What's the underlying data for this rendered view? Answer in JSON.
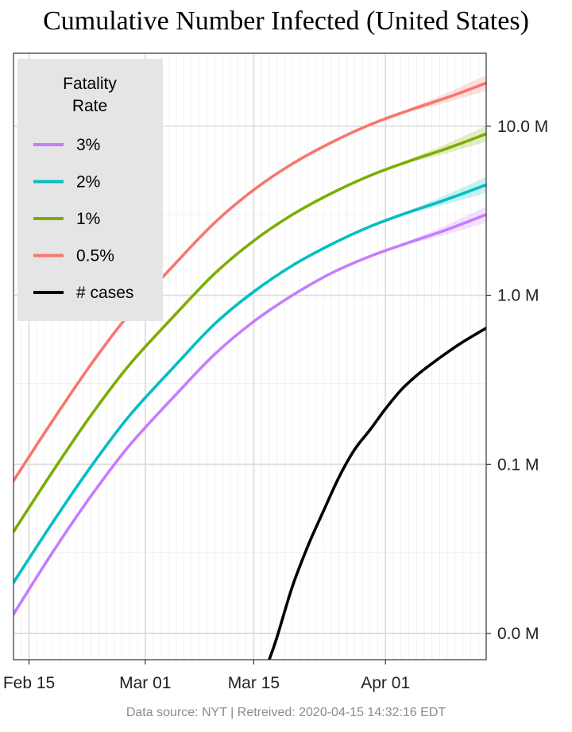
{
  "chart_data": {
    "type": "line",
    "title": "Cumulative Number Infected (United States)",
    "caption": "Data source: NYT  |  Retreived: 2020-04-15 14:32:16 EDT",
    "x_axis": {
      "type": "date",
      "range": [
        "2020-02-13",
        "2020-04-14"
      ],
      "tick_labels": [
        "Feb 15",
        "Mar 01",
        "Mar 15",
        "Apr 01"
      ],
      "tick_dates": [
        "2020-02-15",
        "2020-03-01",
        "2020-03-15",
        "2020-04-01"
      ]
    },
    "y_axis": {
      "scale": "log",
      "position": "right",
      "range": [
        7000,
        27000000
      ],
      "tick_labels": [
        "0.0 M",
        "0.1 M",
        "1.0 M",
        "10.0 M"
      ],
      "tick_values": [
        10000,
        100000,
        1000000,
        10000000
      ]
    },
    "grid": true,
    "legend": {
      "title": "Fatality\nRate",
      "position": "top-left",
      "entries": [
        "3%",
        "2%",
        "1%",
        "0.5%",
        "# cases"
      ]
    },
    "series": [
      {
        "name": "3%",
        "color": "#C77CFF",
        "points": [
          {
            "x": "2020-02-13",
            "y": 13000
          },
          {
            "x": "2020-02-18",
            "y": 30000
          },
          {
            "x": "2020-02-23",
            "y": 65000
          },
          {
            "x": "2020-02-28",
            "y": 130000
          },
          {
            "x": "2020-03-05",
            "y": 260000
          },
          {
            "x": "2020-03-10",
            "y": 450000
          },
          {
            "x": "2020-03-15",
            "y": 700000
          },
          {
            "x": "2020-03-20",
            "y": 1000000
          },
          {
            "x": "2020-03-25",
            "y": 1350000
          },
          {
            "x": "2020-03-30",
            "y": 1700000
          },
          {
            "x": "2020-04-04",
            "y": 2050000
          },
          {
            "x": "2020-04-09",
            "y": 2450000
          },
          {
            "x": "2020-04-14",
            "y": 3000000
          }
        ]
      },
      {
        "name": "2%",
        "color": "#00BFC4",
        "points": [
          {
            "x": "2020-02-13",
            "y": 20000
          },
          {
            "x": "2020-02-18",
            "y": 45000
          },
          {
            "x": "2020-02-23",
            "y": 97000
          },
          {
            "x": "2020-02-28",
            "y": 195000
          },
          {
            "x": "2020-03-05",
            "y": 390000
          },
          {
            "x": "2020-03-10",
            "y": 680000
          },
          {
            "x": "2020-03-15",
            "y": 1050000
          },
          {
            "x": "2020-03-20",
            "y": 1500000
          },
          {
            "x": "2020-03-25",
            "y": 2000000
          },
          {
            "x": "2020-03-30",
            "y": 2550000
          },
          {
            "x": "2020-04-04",
            "y": 3100000
          },
          {
            "x": "2020-04-09",
            "y": 3700000
          },
          {
            "x": "2020-04-14",
            "y": 4500000
          }
        ]
      },
      {
        "name": "1%",
        "color": "#7CAE00",
        "points": [
          {
            "x": "2020-02-13",
            "y": 40000
          },
          {
            "x": "2020-02-18",
            "y": 90000
          },
          {
            "x": "2020-02-23",
            "y": 195000
          },
          {
            "x": "2020-02-28",
            "y": 390000
          },
          {
            "x": "2020-03-05",
            "y": 780000
          },
          {
            "x": "2020-03-10",
            "y": 1350000
          },
          {
            "x": "2020-03-15",
            "y": 2100000
          },
          {
            "x": "2020-03-20",
            "y": 3000000
          },
          {
            "x": "2020-03-25",
            "y": 4000000
          },
          {
            "x": "2020-03-30",
            "y": 5100000
          },
          {
            "x": "2020-04-04",
            "y": 6200000
          },
          {
            "x": "2020-04-09",
            "y": 7400000
          },
          {
            "x": "2020-04-14",
            "y": 9000000
          }
        ]
      },
      {
        "name": "0.5%",
        "color": "#F8766D",
        "points": [
          {
            "x": "2020-02-13",
            "y": 80000
          },
          {
            "x": "2020-02-18",
            "y": 180000
          },
          {
            "x": "2020-02-23",
            "y": 390000
          },
          {
            "x": "2020-02-28",
            "y": 780000
          },
          {
            "x": "2020-03-05",
            "y": 1560000
          },
          {
            "x": "2020-03-10",
            "y": 2700000
          },
          {
            "x": "2020-03-15",
            "y": 4200000
          },
          {
            "x": "2020-03-20",
            "y": 6000000
          },
          {
            "x": "2020-03-25",
            "y": 8000000
          },
          {
            "x": "2020-03-30",
            "y": 10200000
          },
          {
            "x": "2020-04-04",
            "y": 12400000
          },
          {
            "x": "2020-04-09",
            "y": 14800000
          },
          {
            "x": "2020-04-14",
            "y": 18000000
          }
        ]
      },
      {
        "name": "# cases",
        "color": "#000000",
        "points": [
          {
            "x": "2020-03-17",
            "y": 7000
          },
          {
            "x": "2020-03-18",
            "y": 9500
          },
          {
            "x": "2020-03-20",
            "y": 19000
          },
          {
            "x": "2020-03-22",
            "y": 33000
          },
          {
            "x": "2020-03-24",
            "y": 53000
          },
          {
            "x": "2020-03-26",
            "y": 84000
          },
          {
            "x": "2020-03-28",
            "y": 122000
          },
          {
            "x": "2020-03-30",
            "y": 160000
          },
          {
            "x": "2020-04-01",
            "y": 213000
          },
          {
            "x": "2020-04-03",
            "y": 275000
          },
          {
            "x": "2020-04-05",
            "y": 335000
          },
          {
            "x": "2020-04-07",
            "y": 395000
          },
          {
            "x": "2020-04-09",
            "y": 460000
          },
          {
            "x": "2020-04-11",
            "y": 530000
          },
          {
            "x": "2020-04-14",
            "y": 640000
          }
        ]
      }
    ]
  }
}
